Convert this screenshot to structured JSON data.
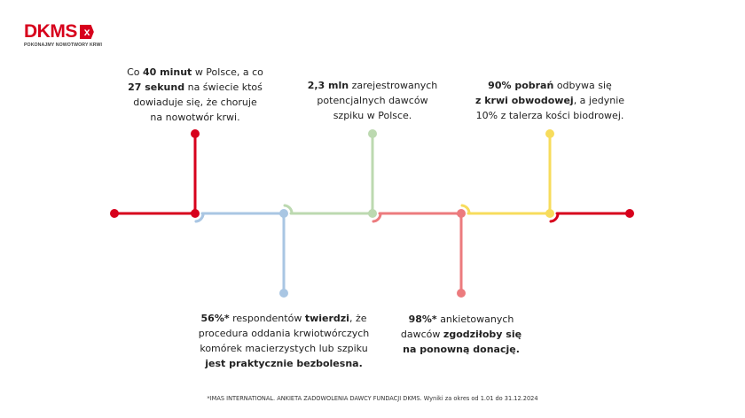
{
  "logo": {
    "text": "DKMS",
    "mark": "x",
    "tagline": "POKONAJMY NOWOTWORY KRWI"
  },
  "colors": {
    "red": "#d7001c",
    "blue": "#a9c6e3",
    "green": "#bcd9b0",
    "pink": "#ec7b7e",
    "yellow": "#f7dc5c"
  },
  "facts": [
    {
      "position": "top",
      "color": "red",
      "lines": [
        [
          {
            "t": "Co "
          },
          {
            "t": "40 minut",
            "b": true
          },
          {
            "t": " w Polsce, a co"
          }
        ],
        [
          {
            "t": "27 sekund",
            "b": true
          },
          {
            "t": " na świecie ktoś"
          }
        ],
        [
          {
            "t": "dowiaduje się, że choruje"
          }
        ],
        [
          {
            "t": "na nowotwór krwi."
          }
        ]
      ]
    },
    {
      "position": "bottom",
      "color": "blue",
      "lines": [
        [
          {
            "t": "56%*",
            "b": true
          },
          {
            "t": " respondentów "
          },
          {
            "t": "twierdzi",
            "b": true
          },
          {
            "t": ", że"
          }
        ],
        [
          {
            "t": "procedura oddania krwiotwórczych"
          }
        ],
        [
          {
            "t": "komórek macierzystych lub szpiku"
          }
        ],
        [
          {
            "t": "jest praktycznie bezbolesna.",
            "b": true
          }
        ]
      ]
    },
    {
      "position": "top",
      "color": "green",
      "lines": [
        [
          {
            "t": "2,3 mln",
            "b": true
          },
          {
            "t": " zarejestrowanych"
          }
        ],
        [
          {
            "t": "potencjalnych dawców"
          }
        ],
        [
          {
            "t": "szpiku w Polsce."
          }
        ]
      ]
    },
    {
      "position": "bottom",
      "color": "pink",
      "lines": [
        [
          {
            "t": "98%*",
            "b": true
          },
          {
            "t": " ankietowanych"
          }
        ],
        [
          {
            "t": "dawców "
          },
          {
            "t": "zgodziłoby się",
            "b": true
          }
        ],
        [
          {
            "t": "na ponowną donację.",
            "b": true
          }
        ]
      ]
    },
    {
      "position": "top",
      "color": "yellow",
      "lines": [
        [
          {
            "t": "90% pobrań",
            "b": true
          },
          {
            "t": " odbywa się"
          }
        ],
        [
          {
            "t": "z krwi obwodowej",
            "b": true
          },
          {
            "t": ", a jedynie"
          }
        ],
        [
          {
            "t": "10% z talerza kości biodrowej."
          }
        ]
      ]
    }
  ],
  "footnote": "*IMAS INTERNATIONAL. ANKIETA ZADOWOLENIA DAWCY FUNDACJI DKMS. Wyniki za okres od 1.01 do 31.12.2024"
}
